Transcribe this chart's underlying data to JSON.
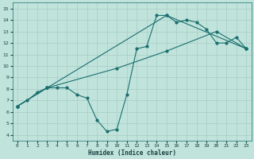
{
  "bg_color": "#c0e4dc",
  "grid_color": "#a8ccc4",
  "line_color": "#1a6e6e",
  "xlabel": "Humidex (Indice chaleur)",
  "xlim": [
    -0.5,
    23.5
  ],
  "ylim": [
    3.5,
    15.5
  ],
  "yticks": [
    4,
    5,
    6,
    7,
    8,
    9,
    10,
    11,
    12,
    13,
    14,
    15
  ],
  "xticks": [
    0,
    1,
    2,
    3,
    4,
    5,
    6,
    7,
    8,
    9,
    10,
    11,
    12,
    13,
    14,
    15,
    16,
    17,
    18,
    19,
    20,
    21,
    22,
    23
  ],
  "line1_x": [
    0,
    1,
    2,
    3,
    4,
    5,
    6,
    7,
    8,
    9,
    10,
    11,
    12,
    13,
    14,
    15,
    16,
    17,
    18,
    19,
    20,
    21,
    22,
    23
  ],
  "line1_y": [
    6.5,
    7.0,
    7.7,
    8.1,
    8.1,
    8.1,
    7.5,
    7.2,
    5.3,
    4.3,
    4.5,
    7.5,
    11.5,
    11.7,
    14.4,
    14.4,
    13.8,
    14.0,
    13.8,
    13.2,
    12.0,
    12.0,
    12.5,
    11.5
  ],
  "line2_x": [
    0,
    3,
    10,
    15,
    20,
    23
  ],
  "line2_y": [
    6.5,
    8.1,
    9.8,
    11.3,
    13.0,
    11.5
  ],
  "line3_x": [
    0,
    3,
    15,
    23
  ],
  "line3_y": [
    6.5,
    8.1,
    14.4,
    11.5
  ]
}
